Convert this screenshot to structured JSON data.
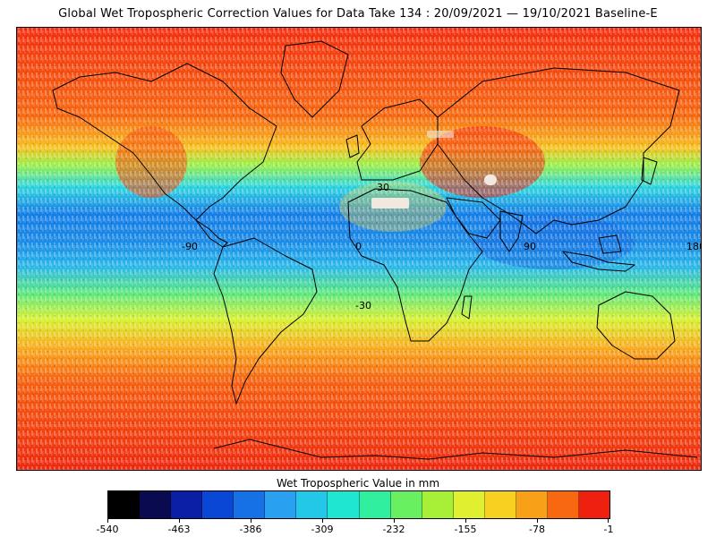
{
  "title": "Global Wet Tropospheric Correction Values for Data Take 134 : 20/09/2021 — 19/10/2021 Baseline-E",
  "map": {
    "lat_labels": [
      "30",
      "-30"
    ],
    "lon_labels": [
      "-90",
      "0",
      "90",
      "180"
    ]
  },
  "colorbar": {
    "title": "Wet Tropospheric Value in mm",
    "range": [
      -540,
      -1
    ],
    "ticks": [
      "-540",
      "-463",
      "-386",
      "-309",
      "-232",
      "-155",
      "-78",
      "-1"
    ],
    "colors": [
      "#000000",
      "#0a0a50",
      "#0b1fa6",
      "#0a47d4",
      "#1670e6",
      "#2aa0f0",
      "#23c8e8",
      "#1ee6d0",
      "#30f0a0",
      "#68f060",
      "#a8f038",
      "#e0f030",
      "#f8d020",
      "#f8a018",
      "#f86810",
      "#f02010"
    ]
  }
}
